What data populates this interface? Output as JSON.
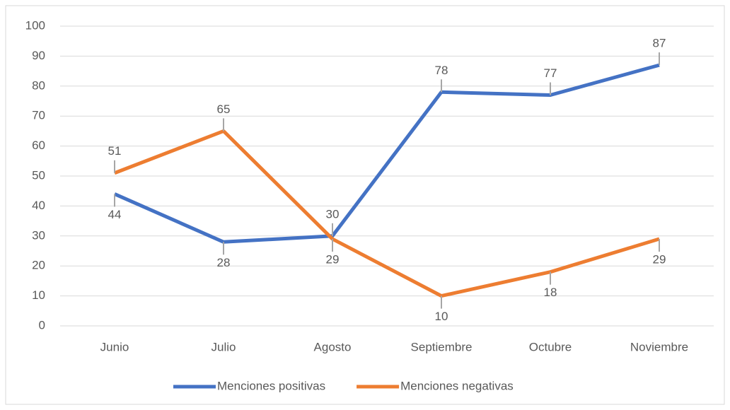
{
  "chart_data": {
    "type": "line",
    "categories": [
      "Junio",
      "Julio",
      "Agosto",
      "Septiembre",
      "Octubre",
      "Noviembre"
    ],
    "series": [
      {
        "name": "Menciones positivas",
        "color": "#4472c4",
        "values": [
          44,
          28,
          30,
          78,
          77,
          87
        ]
      },
      {
        "name": "Menciones negativas",
        "color": "#ed7d31",
        "values": [
          51,
          65,
          29,
          10,
          18,
          29
        ]
      }
    ],
    "ylim": [
      0,
      100
    ],
    "yticks": [
      0,
      10,
      20,
      30,
      40,
      50,
      60,
      70,
      80,
      90,
      100
    ],
    "grid": true,
    "legend": "bottom"
  }
}
